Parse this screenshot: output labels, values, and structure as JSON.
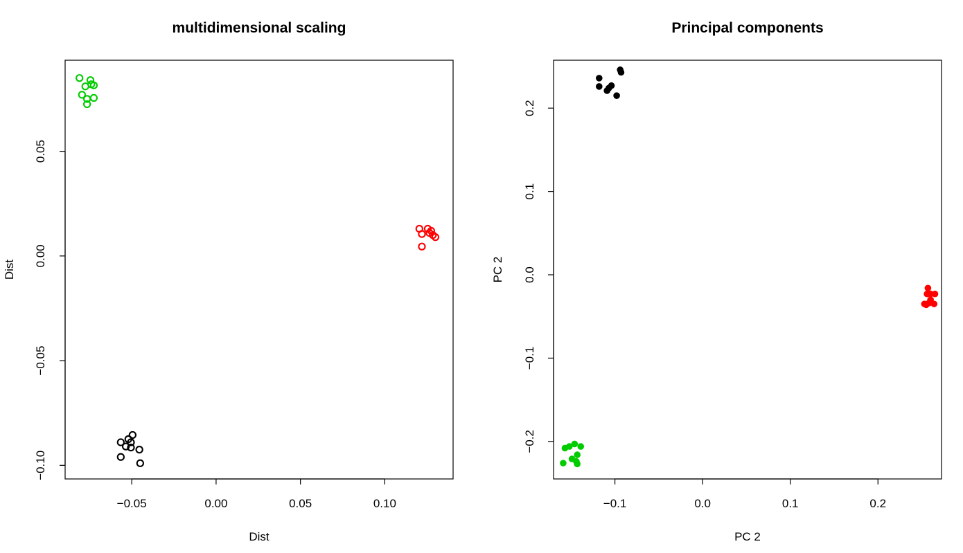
{
  "chart_data": [
    {
      "type": "scatter",
      "title": "multidimensional scaling",
      "xlabel": "Dist",
      "ylabel": "Dist",
      "xlim": [
        -0.0895,
        0.1405
      ],
      "ylim": [
        -0.1065,
        0.0935
      ],
      "xticks": [
        -0.05,
        0.0,
        0.05,
        0.1
      ],
      "xtick_labels": [
        "−0.05",
        "0.00",
        "0.05",
        "0.10"
      ],
      "yticks": [
        -0.1,
        -0.05,
        0.0,
        0.05
      ],
      "ytick_labels": [
        "−0.10",
        "−0.05",
        "0.00",
        "0.05"
      ],
      "marker": "open-circle",
      "grid": false,
      "legend": "none",
      "series": [
        {
          "color": "#00cc00",
          "points": [
            [
              -0.081,
              0.085
            ],
            [
              -0.0745,
              0.084
            ],
            [
              -0.0775,
              0.081
            ],
            [
              -0.074,
              0.082
            ],
            [
              -0.0725,
              0.0815
            ],
            [
              -0.0795,
              0.077
            ],
            [
              -0.0765,
              0.075
            ],
            [
              -0.0725,
              0.0755
            ],
            [
              -0.0765,
              0.0725
            ]
          ]
        },
        {
          "color": "#ff0000",
          "points": [
            [
              0.1205,
              0.013
            ],
            [
              0.1255,
              0.013
            ],
            [
              0.1275,
              0.012
            ],
            [
              0.1265,
              0.011
            ],
            [
              0.122,
              0.0105
            ],
            [
              0.1285,
              0.01
            ],
            [
              0.13,
              0.009
            ],
            [
              0.122,
              0.0045
            ]
          ]
        },
        {
          "color": "#000000",
          "points": [
            [
              -0.0495,
              -0.0855
            ],
            [
              -0.052,
              -0.0875
            ],
            [
              -0.0565,
              -0.089
            ],
            [
              -0.0505,
              -0.089
            ],
            [
              -0.0535,
              -0.091
            ],
            [
              -0.0505,
              -0.0915
            ],
            [
              -0.0455,
              -0.0925
            ],
            [
              -0.0565,
              -0.096
            ],
            [
              -0.045,
              -0.099
            ]
          ]
        }
      ]
    },
    {
      "type": "scatter",
      "title": "Principal components",
      "xlabel": "PC 2",
      "ylabel": "PC 2",
      "xlim": [
        -0.17,
        0.2725
      ],
      "ylim": [
        -0.245,
        0.2575
      ],
      "xticks": [
        -0.1,
        0.0,
        0.1,
        0.2
      ],
      "xtick_labels": [
        "−0.1",
        "0.0",
        "0.1",
        "0.2"
      ],
      "yticks": [
        -0.2,
        -0.1,
        0.0,
        0.1,
        0.2
      ],
      "ytick_labels": [
        "−0.2",
        "−0.1",
        "0.0",
        "0.1",
        "0.2"
      ],
      "marker": "filled-circle",
      "grid": false,
      "legend": "none",
      "series": [
        {
          "color": "#000000",
          "points": [
            [
              -0.094,
              0.246
            ],
            [
              -0.093,
              0.243
            ],
            [
              -0.118,
              0.236
            ],
            [
              -0.118,
              0.226
            ],
            [
              -0.104,
              0.227
            ],
            [
              -0.107,
              0.224
            ],
            [
              -0.109,
              0.221
            ],
            [
              -0.098,
              0.215
            ]
          ]
        },
        {
          "color": "#ff0000",
          "points": [
            [
              0.257,
              -0.016
            ],
            [
              0.256,
              -0.023
            ],
            [
              0.265,
              -0.023
            ],
            [
              0.26,
              -0.023
            ],
            [
              0.26,
              -0.03
            ],
            [
              0.253,
              -0.035
            ],
            [
              0.258,
              -0.034
            ],
            [
              0.264,
              -0.035
            ],
            [
              0.255,
              -0.036
            ]
          ]
        },
        {
          "color": "#00cc00",
          "points": [
            [
              -0.146,
              -0.203
            ],
            [
              -0.139,
              -0.206
            ],
            [
              -0.152,
              -0.206
            ],
            [
              -0.157,
              -0.208
            ],
            [
              -0.143,
              -0.216
            ],
            [
              -0.149,
              -0.221
            ],
            [
              -0.144,
              -0.224
            ],
            [
              -0.159,
              -0.226
            ],
            [
              -0.143,
              -0.227
            ]
          ]
        }
      ]
    }
  ]
}
